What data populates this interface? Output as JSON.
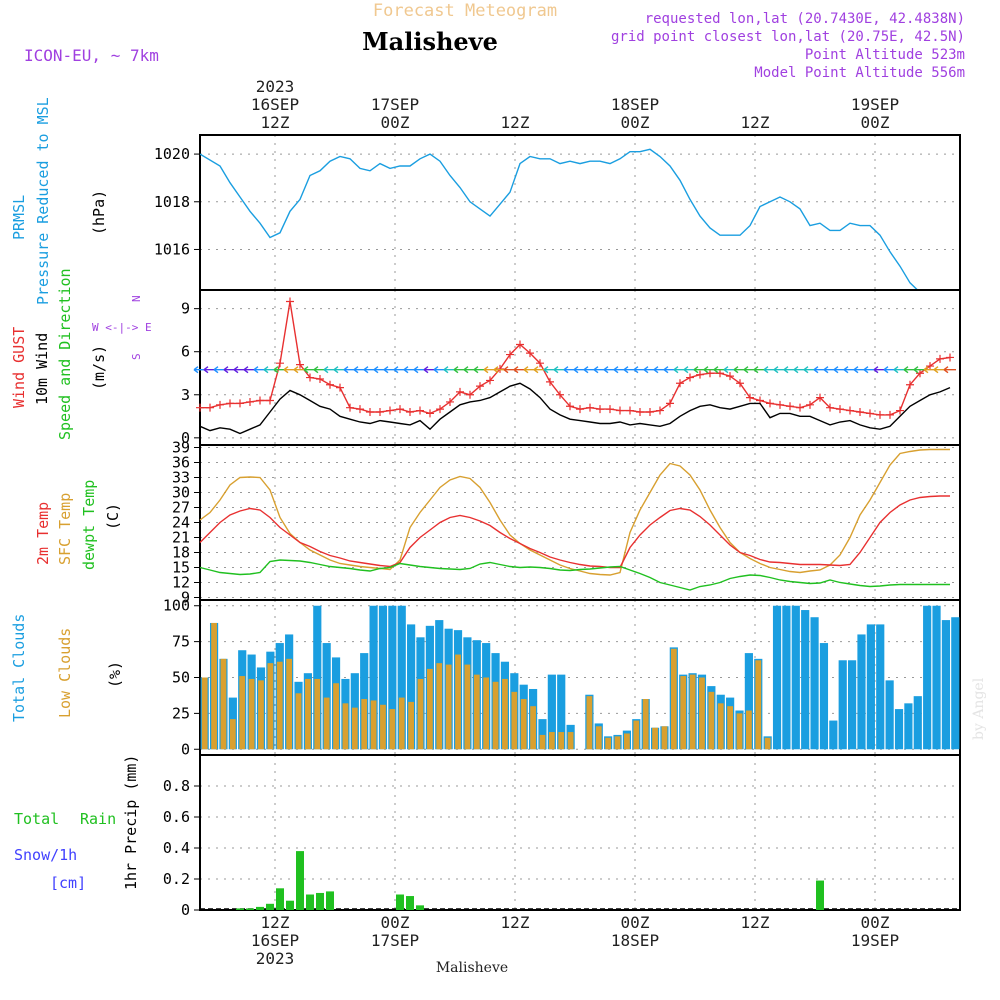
{
  "header": {
    "title": "Forecast Meteogram",
    "location": "Malisheve",
    "model": "ICON-EU, ~ 7km",
    "requested": "requested lon,lat (20.7430E, 42.4838N)",
    "gridpoint": "grid point closest lon,lat (20.75E, 42.5N)",
    "point_alt": "Point Altitude 523m",
    "model_alt": "Model Point Altitude 556m",
    "credit": "by Angel",
    "footer": "Malisheve"
  },
  "axis_time": {
    "top_labels": [
      [
        "2023",
        "16SEP",
        "12Z"
      ],
      [
        "",
        "17SEP",
        "00Z"
      ],
      [
        "",
        "",
        "12Z"
      ],
      [
        "",
        "18SEP",
        "00Z"
      ],
      [
        "",
        "",
        "12Z"
      ],
      [
        "",
        "19SEP",
        "00Z"
      ]
    ],
    "bottom_labels": [
      [
        "12Z",
        "16SEP",
        "2023"
      ],
      [
        "00Z",
        "17SEP",
        ""
      ],
      [
        "12Z",
        "",
        ""
      ],
      [
        "00Z",
        "18SEP",
        ""
      ],
      [
        "12Z",
        "",
        ""
      ],
      [
        "00Z",
        "19SEP",
        ""
      ]
    ],
    "tick_hours": [
      7.5,
      19.5,
      31.5,
      43.5,
      55.5,
      67.5
    ]
  },
  "panel_labels": {
    "pressure": [
      "PRMSL",
      "Pressure Reduced to MSL",
      "(hPa)"
    ],
    "wind": [
      "Wind GUST",
      "10m Wind",
      "Speed and Direction",
      "(m/s)"
    ],
    "compass": [
      "N",
      "W <-|-> E",
      "S"
    ],
    "temp": [
      "2m Temp",
      "SFC Temp",
      "dewpt Temp",
      "(C)"
    ],
    "clouds": [
      "Total Clouds",
      "Low Clouds",
      "(%)"
    ],
    "precip": [
      "Total",
      "Rain",
      "Snow/1h",
      "[cm]",
      "1hr Precip (mm)"
    ]
  },
  "colors": {
    "pressure": "#1a9ee0",
    "gust": "#e83030",
    "wind": "#000000",
    "temp2m": "#e83030",
    "sfc": "#d8a030",
    "dewpt": "#20c020",
    "total_clouds": "#1a9ee0",
    "low_clouds": "#d8a030",
    "rain": "#20c020",
    "snow": "#4040ff",
    "title": "#f0c890",
    "meta": "#a040e0"
  },
  "chart_data": [
    {
      "type": "line",
      "name": "pressure",
      "x_range_hours": [
        0,
        76
      ],
      "ylim": [
        1014.3,
        1020.8
      ],
      "yticks": [
        1016,
        1018,
        1020
      ],
      "x": [
        0,
        2,
        3,
        4,
        5,
        6,
        7,
        8,
        9,
        10,
        11,
        12,
        13,
        14,
        15,
        16,
        17,
        18,
        19,
        20,
        21,
        22,
        23,
        24,
        25,
        26,
        27,
        28,
        29,
        30,
        31,
        32,
        33,
        34,
        35,
        36,
        37,
        38,
        39,
        40,
        41,
        42,
        43,
        44,
        45,
        46,
        47,
        48,
        49,
        50,
        51,
        52,
        53,
        54,
        55,
        56,
        57,
        58,
        59,
        60,
        61,
        62,
        63,
        64,
        65,
        66,
        67,
        68,
        69,
        70,
        71,
        72,
        73,
        74,
        75,
        76
      ],
      "y": [
        1020.0,
        1019.5,
        1018.8,
        1018.2,
        1017.6,
        1017.1,
        1016.5,
        1016.7,
        1017.6,
        1018.1,
        1019.1,
        1019.3,
        1019.7,
        1019.9,
        1019.8,
        1019.4,
        1019.3,
        1019.6,
        1019.4,
        1019.5,
        1019.5,
        1019.8,
        1020.0,
        1019.7,
        1019.1,
        1018.6,
        1018.0,
        1017.7,
        1017.4,
        1017.9,
        1018.4,
        1019.6,
        1019.9,
        1019.8,
        1019.8,
        1019.6,
        1019.7,
        1019.6,
        1019.7,
        1019.7,
        1019.6,
        1019.8,
        1020.1,
        1020.1,
        1020.2,
        1019.9,
        1019.5,
        1018.9,
        1018.1,
        1017.4,
        1016.9,
        1016.6,
        1016.6,
        1016.6,
        1017.0,
        1017.8,
        1018.0,
        1018.2,
        1018.0,
        1017.7,
        1017.0,
        1017.1,
        1016.8,
        1016.8,
        1017.1,
        1017.0,
        1017.0,
        1016.6,
        1015.9,
        1015.3,
        1014.6,
        1014.2,
        1014.0,
        1013.8,
        1013.7,
        1013.6
      ]
    },
    {
      "type": "line",
      "name": "wind",
      "ylim": [
        -0.5,
        10.3
      ],
      "yticks": [
        0,
        3,
        6,
        9
      ],
      "x": [
        0,
        1,
        2,
        3,
        4,
        5,
        6,
        7,
        8,
        9,
        10,
        11,
        12,
        13,
        14,
        15,
        16,
        17,
        18,
        19,
        20,
        21,
        22,
        23,
        24,
        25,
        26,
        27,
        28,
        29,
        30,
        31,
        32,
        33,
        34,
        35,
        36,
        37,
        38,
        39,
        40,
        41,
        42,
        43,
        44,
        45,
        46,
        47,
        48,
        49,
        50,
        51,
        52,
        53,
        54,
        55,
        56,
        57,
        58,
        59,
        60,
        61,
        62,
        63,
        64,
        65,
        66,
        67,
        68,
        69,
        70,
        71,
        72,
        73,
        74,
        75
      ],
      "gust": [
        2.1,
        2.1,
        2.3,
        2.4,
        2.4,
        2.5,
        2.6,
        2.6,
        5.2,
        9.5,
        5.1,
        4.2,
        4.1,
        3.7,
        3.5,
        2.1,
        2.0,
        1.8,
        1.8,
        1.9,
        2.0,
        1.8,
        1.9,
        1.7,
        2.0,
        2.5,
        3.2,
        3.0,
        3.6,
        4.0,
        4.8,
        5.8,
        6.5,
        5.9,
        5.2,
        3.9,
        3.0,
        2.2,
        2.0,
        2.1,
        2.0,
        2.0,
        1.9,
        1.9,
        1.8,
        1.8,
        1.9,
        2.4,
        3.8,
        4.2,
        4.4,
        4.5,
        4.5,
        4.3,
        3.8,
        2.8,
        2.6,
        2.4,
        2.3,
        2.2,
        2.1,
        2.3,
        2.8,
        2.1,
        2.0,
        1.9,
        1.8,
        1.7,
        1.6,
        1.6,
        1.9,
        3.7,
        4.5,
        5.0,
        5.5,
        5.6
      ],
      "wind10m": [
        0.8,
        0.5,
        0.7,
        0.6,
        0.3,
        0.6,
        0.9,
        1.8,
        2.7,
        3.3,
        3.0,
        2.6,
        2.2,
        2.0,
        1.5,
        1.3,
        1.1,
        1.0,
        1.2,
        1.1,
        1.0,
        0.9,
        1.2,
        0.6,
        1.3,
        1.8,
        2.3,
        2.5,
        2.6,
        2.8,
        3.2,
        3.6,
        3.8,
        3.4,
        2.8,
        2.0,
        1.6,
        1.3,
        1.2,
        1.1,
        1.0,
        1.0,
        1.1,
        0.9,
        1.0,
        0.9,
        0.8,
        1.0,
        1.5,
        1.9,
        2.2,
        2.3,
        2.1,
        2.0,
        2.2,
        2.4,
        2.4,
        1.4,
        1.7,
        1.7,
        1.5,
        1.5,
        1.2,
        0.9,
        1.1,
        1.2,
        0.9,
        0.7,
        0.6,
        0.8,
        1.5,
        2.2,
        2.6,
        3.0,
        3.2,
        3.5
      ]
    },
    {
      "type": "line",
      "name": "temperature",
      "ylim": [
        8.5,
        39.5
      ],
      "yticks": [
        9,
        12,
        15,
        18,
        21,
        24,
        27,
        30,
        33,
        36,
        39
      ],
      "x": [
        0,
        1,
        2,
        3,
        4,
        5,
        6,
        7,
        8,
        9,
        10,
        11,
        12,
        13,
        14,
        15,
        16,
        17,
        18,
        19,
        20,
        21,
        22,
        23,
        24,
        25,
        26,
        27,
        28,
        29,
        30,
        31,
        32,
        33,
        34,
        35,
        36,
        37,
        38,
        39,
        40,
        41,
        42,
        43,
        44,
        45,
        46,
        47,
        48,
        49,
        50,
        51,
        52,
        53,
        54,
        55,
        56,
        57,
        58,
        59,
        60,
        61,
        62,
        63,
        64,
        65,
        66,
        67,
        68,
        69,
        70,
        71,
        72,
        73,
        74,
        75
      ],
      "t2m": [
        20.0,
        22.0,
        24.0,
        25.5,
        26.3,
        26.8,
        26.5,
        25.0,
        23.0,
        21.5,
        20.0,
        19.2,
        18.2,
        17.4,
        16.9,
        16.3,
        16.0,
        15.7,
        15.4,
        15.2,
        16.0,
        19.0,
        21.0,
        22.5,
        24.0,
        25.0,
        25.4,
        25.0,
        24.3,
        23.4,
        22.0,
        20.8,
        19.8,
        18.8,
        18.0,
        17.1,
        16.5,
        16.0,
        15.6,
        15.3,
        15.2,
        15.0,
        15.0,
        19.0,
        21.5,
        23.5,
        25.0,
        26.4,
        26.8,
        26.5,
        25.2,
        23.5,
        21.5,
        19.5,
        18.0,
        17.4,
        16.6,
        16.1,
        16.0,
        15.8,
        15.6,
        15.6,
        15.6,
        15.5,
        15.4,
        15.6,
        18.0,
        21.0,
        24.0,
        26.0,
        27.5,
        28.5,
        29.0,
        29.2,
        29.3,
        29.3
      ],
      "sfc": [
        24.5,
        26.0,
        28.5,
        31.5,
        33.0,
        33.1,
        33.0,
        30.5,
        25.0,
        21.8,
        20.0,
        18.5,
        17.5,
        16.5,
        15.8,
        15.5,
        15.2,
        15.0,
        14.8,
        14.6,
        16.5,
        23.0,
        26.0,
        28.5,
        31.0,
        32.5,
        33.2,
        32.8,
        31.0,
        28.0,
        24.5,
        21.5,
        19.8,
        18.5,
        17.5,
        16.5,
        15.5,
        14.8,
        14.3,
        13.8,
        13.6,
        13.5,
        14.0,
        22.0,
        26.5,
        30.0,
        33.5,
        35.8,
        35.3,
        33.5,
        30.5,
        26.5,
        23.0,
        20.0,
        18.0,
        16.8,
        15.8,
        15.0,
        14.6,
        14.2,
        14.0,
        14.3,
        14.5,
        15.5,
        17.5,
        21.0,
        25.5,
        28.5,
        32.0,
        35.5,
        37.8,
        38.2,
        38.5,
        38.6,
        38.6,
        38.6
      ],
      "dewpt": [
        15.0,
        14.5,
        14.0,
        13.8,
        13.6,
        13.7,
        14.0,
        16.2,
        16.5,
        16.4,
        16.3,
        16.0,
        15.6,
        15.2,
        15.0,
        14.8,
        14.5,
        14.3,
        14.8,
        15.0,
        15.8,
        15.5,
        15.2,
        15.0,
        14.8,
        14.7,
        14.6,
        14.8,
        15.7,
        16.0,
        15.6,
        15.2,
        15.0,
        15.1,
        15.0,
        14.8,
        14.5,
        14.4,
        14.6,
        14.7,
        14.9,
        15.1,
        15.2,
        14.5,
        13.8,
        13.0,
        12.0,
        11.5,
        11.0,
        10.5,
        11.2,
        11.5,
        12.0,
        12.8,
        13.2,
        13.5,
        13.4,
        13.0,
        12.5,
        12.2,
        12.0,
        11.8,
        11.9,
        12.5,
        12.0,
        11.7,
        11.4,
        11.2,
        11.3,
        11.5,
        11.6,
        11.6,
        11.6,
        11.6,
        11.6,
        11.6
      ]
    },
    {
      "type": "bar",
      "name": "clouds",
      "ylim": [
        -4,
        104
      ],
      "yticks": [
        0,
        25,
        50,
        75,
        100
      ],
      "total": [
        50,
        88,
        63,
        36,
        69,
        66,
        57,
        68,
        74,
        80,
        47,
        53,
        100,
        74,
        64,
        49,
        53,
        67,
        100,
        100,
        100,
        100,
        87,
        78,
        86,
        90,
        84,
        83,
        78,
        76,
        74,
        67,
        61,
        53,
        45,
        42,
        21,
        52,
        52,
        17,
        0,
        38,
        18,
        9,
        10,
        13,
        21,
        35,
        15,
        16,
        71,
        52,
        53,
        52,
        44,
        38,
        36,
        27,
        67,
        63,
        9,
        100,
        100,
        100,
        97,
        92,
        74,
        20,
        62,
        62,
        80,
        87,
        87,
        48,
        28,
        32,
        37,
        100,
        100,
        90,
        92
      ],
      "low": [
        50,
        88,
        63,
        21,
        51,
        49,
        48,
        60,
        61,
        63,
        39,
        49,
        49,
        36,
        46,
        32,
        29,
        35,
        34,
        31,
        28,
        36,
        33,
        49,
        56,
        60,
        59,
        66,
        59,
        52,
        50,
        47,
        49,
        40,
        35,
        30,
        10,
        12,
        12,
        12,
        0,
        37,
        16,
        8,
        9,
        11,
        20,
        35,
        15,
        16,
        70,
        51,
        52,
        50,
        40,
        32,
        30,
        25,
        27,
        62,
        8,
        0,
        0,
        0,
        0,
        0,
        0,
        0,
        0,
        0,
        0,
        0,
        0,
        0,
        0,
        0,
        0,
        0,
        0,
        0,
        0
      ]
    },
    {
      "type": "bar",
      "name": "precipitation",
      "ylim": [
        0,
        1.0
      ],
      "yticks": [
        0,
        0.2,
        0.4,
        0.6,
        0.8
      ],
      "hours": [
        4,
        5,
        6,
        7,
        8,
        9,
        10,
        11,
        12,
        13,
        14,
        15,
        20,
        21,
        22,
        23,
        24,
        62
      ],
      "rain": [
        0.01,
        0.01,
        0.02,
        0.04,
        0.14,
        0.06,
        0.38,
        0.1,
        0.11,
        0.12,
        0.0,
        0.0,
        0.1,
        0.09,
        0.03,
        0.0,
        0.0,
        0.19
      ]
    }
  ]
}
